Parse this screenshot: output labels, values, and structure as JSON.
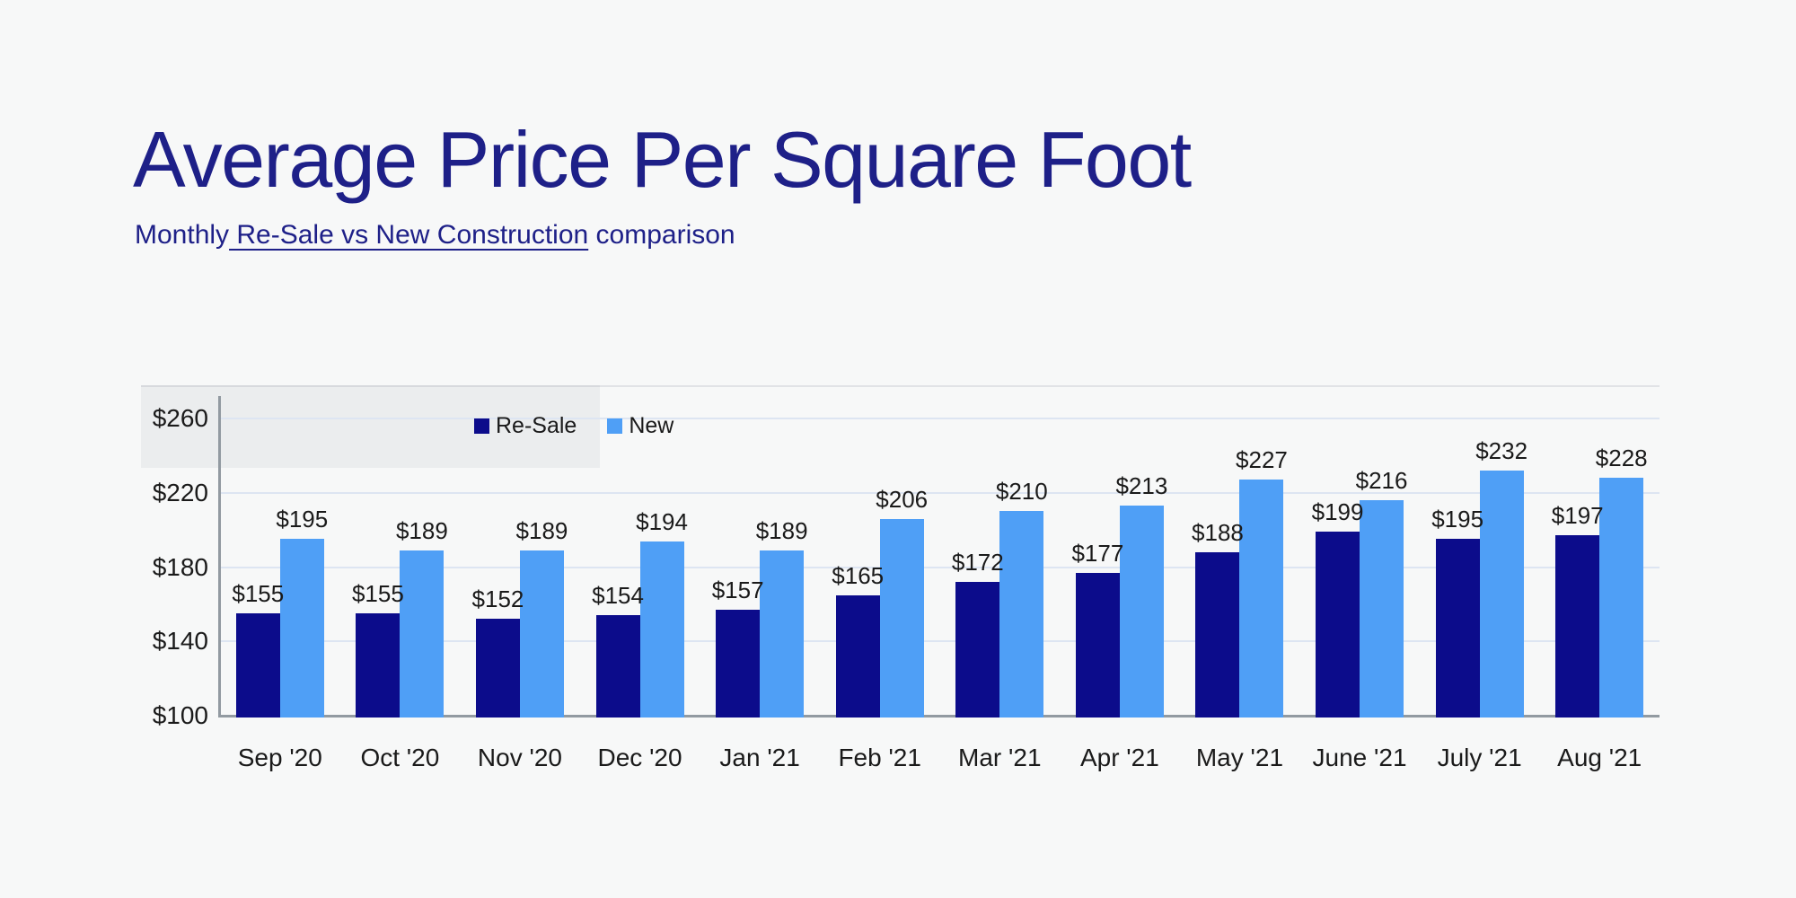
{
  "page": {
    "background": "#f7f8f8"
  },
  "header": {
    "title": "Average Price Per Square Foot",
    "subtitle_prefix": "Monthly",
    "subtitle_link": " Re-Sale vs New Construction",
    "subtitle_suffix": " comparison"
  },
  "colors": {
    "title": "#1e2088",
    "resale": "#0c0c8b",
    "new": "#4f9ff6",
    "label": "#1a1a1a",
    "grid": "#dde5f2",
    "axis": "#929aa1",
    "background": "#f7f8f8",
    "shade": "rgba(125,135,148,0.09)"
  },
  "legend": {
    "items": [
      "Re-Sale",
      "New"
    ]
  },
  "chart_data": {
    "type": "bar",
    "title": "Average Price Per Square Foot",
    "subtitle": "Monthly Re-Sale vs New Construction comparison",
    "categories": [
      "Sep '20",
      "Oct '20",
      "Nov '20",
      "Dec '20",
      "Jan '21",
      "Feb '21",
      "Mar '21",
      "Apr '21",
      "May '21",
      "June '21",
      "July '21",
      "Aug '21"
    ],
    "series": [
      {
        "name": "Re-Sale",
        "color_key": "resale",
        "values": [
          155,
          155,
          152,
          154,
          157,
          165,
          172,
          177,
          188,
          199,
          195,
          197
        ]
      },
      {
        "name": "New",
        "color_key": "new",
        "values": [
          195,
          189,
          189,
          194,
          189,
          206,
          210,
          213,
          227,
          216,
          232,
          228
        ]
      }
    ],
    "value_prefix": "$",
    "y_tick_values": [
      100,
      140,
      180,
      220,
      260
    ],
    "y_tick_labels": [
      "$100",
      "$140",
      "$180",
      "$220",
      "$260"
    ],
    "ylim": [
      100,
      260
    ],
    "grid": true,
    "legend_position": "top",
    "value_labels_shown": true
  }
}
